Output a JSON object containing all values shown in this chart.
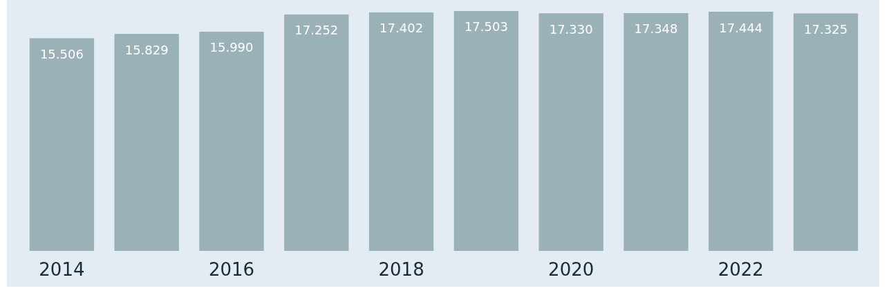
{
  "chart_data": {
    "type": "bar",
    "categories": [
      "2014",
      null,
      "2016",
      null,
      "2018",
      null,
      "2020",
      null,
      "2022",
      null
    ],
    "values": [
      15506,
      15829,
      15990,
      17252,
      17402,
      17503,
      17330,
      17348,
      17444,
      17325
    ],
    "value_labels": [
      "15.506",
      "15.829",
      "15.990",
      "17.252",
      "17.402",
      "17.503",
      "17.330",
      "17.348",
      "17.444",
      "17.325"
    ],
    "color": "#9ab1b8"
  }
}
